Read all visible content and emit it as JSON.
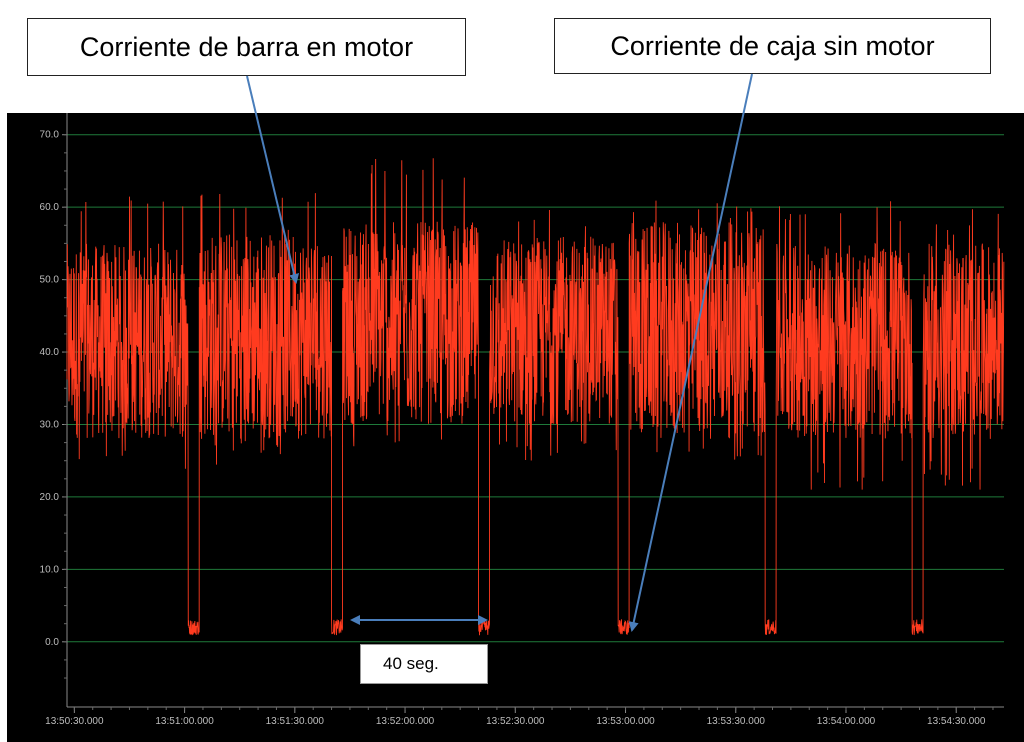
{
  "annotations": {
    "bar_current_label": "Corriente de barra en motor",
    "box_current_label": "Corriente de caja sin motor",
    "duration_label": "40 seg."
  },
  "colors": {
    "trace": "#ff3b1f",
    "grid": "#1f7a3a",
    "screen_bg": "#000000",
    "arrow": "#4a7ebb",
    "tick_text": "#bdbdbd"
  },
  "chart_data": {
    "type": "line",
    "title": "",
    "xlabel": "",
    "ylabel": "",
    "ylim": [
      -9,
      73
    ],
    "xlim": [
      "13:50:28",
      "13:54:43"
    ],
    "y_ticks": [
      "70.0",
      "60.0",
      "50.0",
      "40.0",
      "30.0",
      "20.0",
      "10.0",
      "0.0"
    ],
    "x_ticks": [
      "13:50:30.000",
      "13:51:00.000",
      "13:51:30.000",
      "13:52:00.000",
      "13:52:30.000",
      "13:53:00.000",
      "13:53:30.000",
      "13:54:00.000",
      "13:54:30.000"
    ],
    "grid": true,
    "series": [
      {
        "segments": [
          {
            "phase": "motor",
            "start": "13:50:28",
            "end": "13:51:01",
            "low": 28,
            "high": 55,
            "max": 62,
            "min": 23
          },
          {
            "phase": "idle",
            "start": "13:51:01",
            "end": "13:51:04",
            "value": 2
          },
          {
            "phase": "motor",
            "start": "13:51:04",
            "end": "13:51:40",
            "low": 28,
            "high": 57,
            "max": 62,
            "min": 24
          },
          {
            "phase": "idle",
            "start": "13:51:40",
            "end": "13:51:43",
            "value": 2
          },
          {
            "phase": "motor",
            "start": "13:51:43",
            "end": "13:52:20",
            "low": 30,
            "high": 58,
            "max": 67,
            "min": 25
          },
          {
            "phase": "idle",
            "start": "13:52:20",
            "end": "13:52:23",
            "value": 2
          },
          {
            "phase": "motor",
            "start": "13:52:23",
            "end": "13:52:58",
            "low": 30,
            "high": 56,
            "max": 60,
            "min": 24
          },
          {
            "phase": "idle",
            "start": "13:52:58",
            "end": "13:53:01",
            "value": 2
          },
          {
            "phase": "motor",
            "start": "13:53:01",
            "end": "13:53:38",
            "low": 28,
            "high": 58,
            "max": 62,
            "min": 25
          },
          {
            "phase": "idle",
            "start": "13:53:38",
            "end": "13:53:41",
            "value": 2
          },
          {
            "phase": "motor",
            "start": "13:53:41",
            "end": "13:54:18",
            "low": 28,
            "high": 55,
            "max": 61,
            "min": 21
          },
          {
            "phase": "idle",
            "start": "13:54:18",
            "end": "13:54:21",
            "value": 2
          },
          {
            "phase": "motor",
            "start": "13:54:21",
            "end": "13:54:43",
            "low": 28,
            "high": 55,
            "max": 60,
            "min": 21
          }
        ]
      }
    ]
  }
}
